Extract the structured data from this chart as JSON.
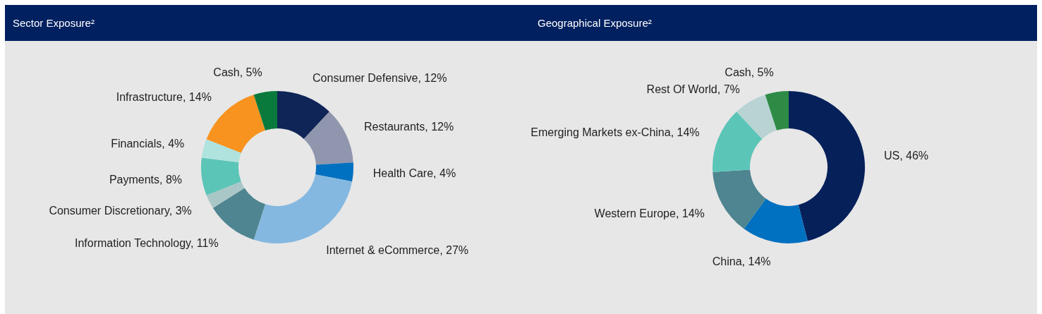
{
  "chart_data": [
    {
      "type": "donut",
      "title": "Sector Exposure²",
      "categories": [
        "Consumer Defensive",
        "Restaurants",
        "Health Care",
        "Internet & eCommerce",
        "Information Technology",
        "Consumer Discretionary",
        "Payments",
        "Financials",
        "Infrastructure",
        "Cash"
      ],
      "values": [
        12,
        12,
        4,
        27,
        11,
        3,
        8,
        4,
        14,
        5
      ],
      "value_labels": [
        "12%",
        "12%",
        "4%",
        "27%",
        "11%",
        "3%",
        "8%",
        "4%",
        "14%",
        "5%"
      ],
      "colors": [
        "#0f2557",
        "#9096ad",
        "#0070c0",
        "#85b8e0",
        "#4e8590",
        "#a9c7c7",
        "#5bc5b8",
        "#b0e3de",
        "#f7931e",
        "#0a7a3c"
      ]
    },
    {
      "type": "donut",
      "title": "Geographical Exposure²",
      "categories": [
        "US",
        "China",
        "Western Europe",
        "Emerging Markets ex-China",
        "Rest Of World",
        "Cash"
      ],
      "values": [
        46,
        14,
        14,
        14,
        7,
        5
      ],
      "value_labels": [
        "46%",
        "14%",
        "14%",
        "14%",
        "7%",
        "5%"
      ],
      "colors": [
        "#06205a",
        "#0070c0",
        "#4e8590",
        "#5bc5b8",
        "#b9d3d3",
        "#2e8b46"
      ]
    }
  ]
}
